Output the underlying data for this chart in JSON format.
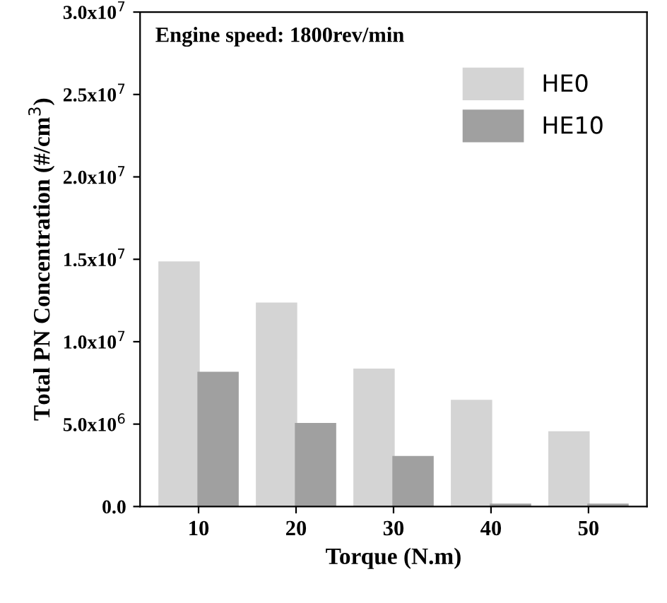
{
  "chart_data": {
    "type": "bar",
    "xlabel": "Torque (N.m)",
    "ylabel": "Total PN Concentration (#/cm$^{3}$)",
    "categories": [
      "10",
      "20",
      "30",
      "40",
      "50"
    ],
    "series": [
      {
        "name": "HE0",
        "color": "#d4d4d4",
        "values": [
          14800000,
          12300000,
          8300000,
          6400000,
          4500000
        ]
      },
      {
        "name": "HE10",
        "color": "#a0a0a0",
        "values": [
          8100000,
          5000000,
          3000000,
          100000,
          100000
        ]
      }
    ],
    "ylim": [
      0,
      30000000
    ],
    "yticks": [
      {
        "value": 0,
        "label": "0.0"
      },
      {
        "value": 5000000,
        "label": "5.0x10$^{6}$"
      },
      {
        "value": 10000000,
        "label": "1.0x10$^{7}$"
      },
      {
        "value": 15000000,
        "label": "1.5x10$^{7}$"
      },
      {
        "value": 20000000,
        "label": "2.0x10$^{7}$"
      },
      {
        "value": 25000000,
        "label": "2.5x10$^{7}$"
      },
      {
        "value": 30000000,
        "label": "3.0x10$^{7}$"
      }
    ],
    "annotations": [
      "Engine speed: 1800rev/min"
    ],
    "legend": "top right",
    "grid": false
  }
}
